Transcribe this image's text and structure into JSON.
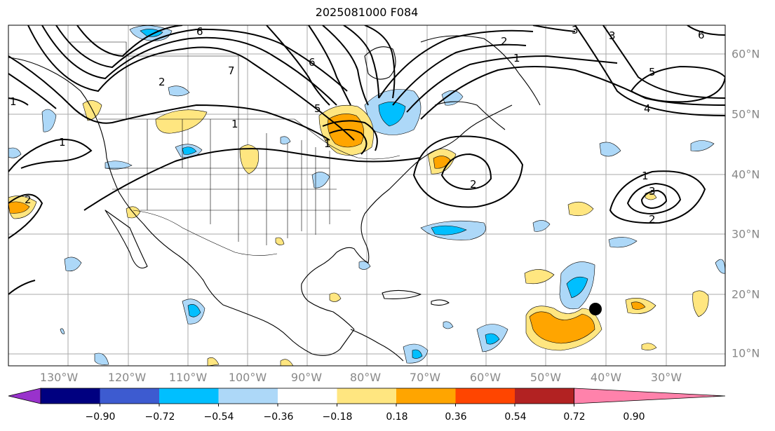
{
  "title": "2025081000 F084",
  "map": {
    "longitude_labels": [
      "130°W",
      "120°W",
      "110°W",
      "100°W",
      "90°W",
      "80°W",
      "70°W",
      "60°W",
      "50°W",
      "40°W",
      "30°W"
    ],
    "latitude_labels": [
      "60°N",
      "50°N",
      "40°N",
      "30°N",
      "20°N",
      "10°N"
    ],
    "gridlines": true
  },
  "contour_labels": [
    "6",
    "2",
    "3",
    "1",
    "3",
    "6",
    "7",
    "6",
    "5",
    "1",
    "2",
    "1",
    "5",
    "4",
    "1",
    "2",
    "1",
    "3",
    "2",
    "2",
    "1"
  ],
  "colorbar": {
    "tick_labels": [
      "−0.90",
      "−0.72",
      "−0.54",
      "−0.36",
      "−0.18",
      "0.18",
      "0.36",
      "0.54",
      "0.72",
      "0.90"
    ],
    "colors": [
      "#9932cc",
      "#000080",
      "#3d5bd0",
      "#00bfff",
      "#add8f8",
      "#ffffff",
      "#ffe680",
      "#ffa500",
      "#ff4500",
      "#b22222",
      "#ff82ab"
    ],
    "extend": "both"
  },
  "marker": {
    "icon": "storm-position-dot",
    "color": "#000000"
  }
}
